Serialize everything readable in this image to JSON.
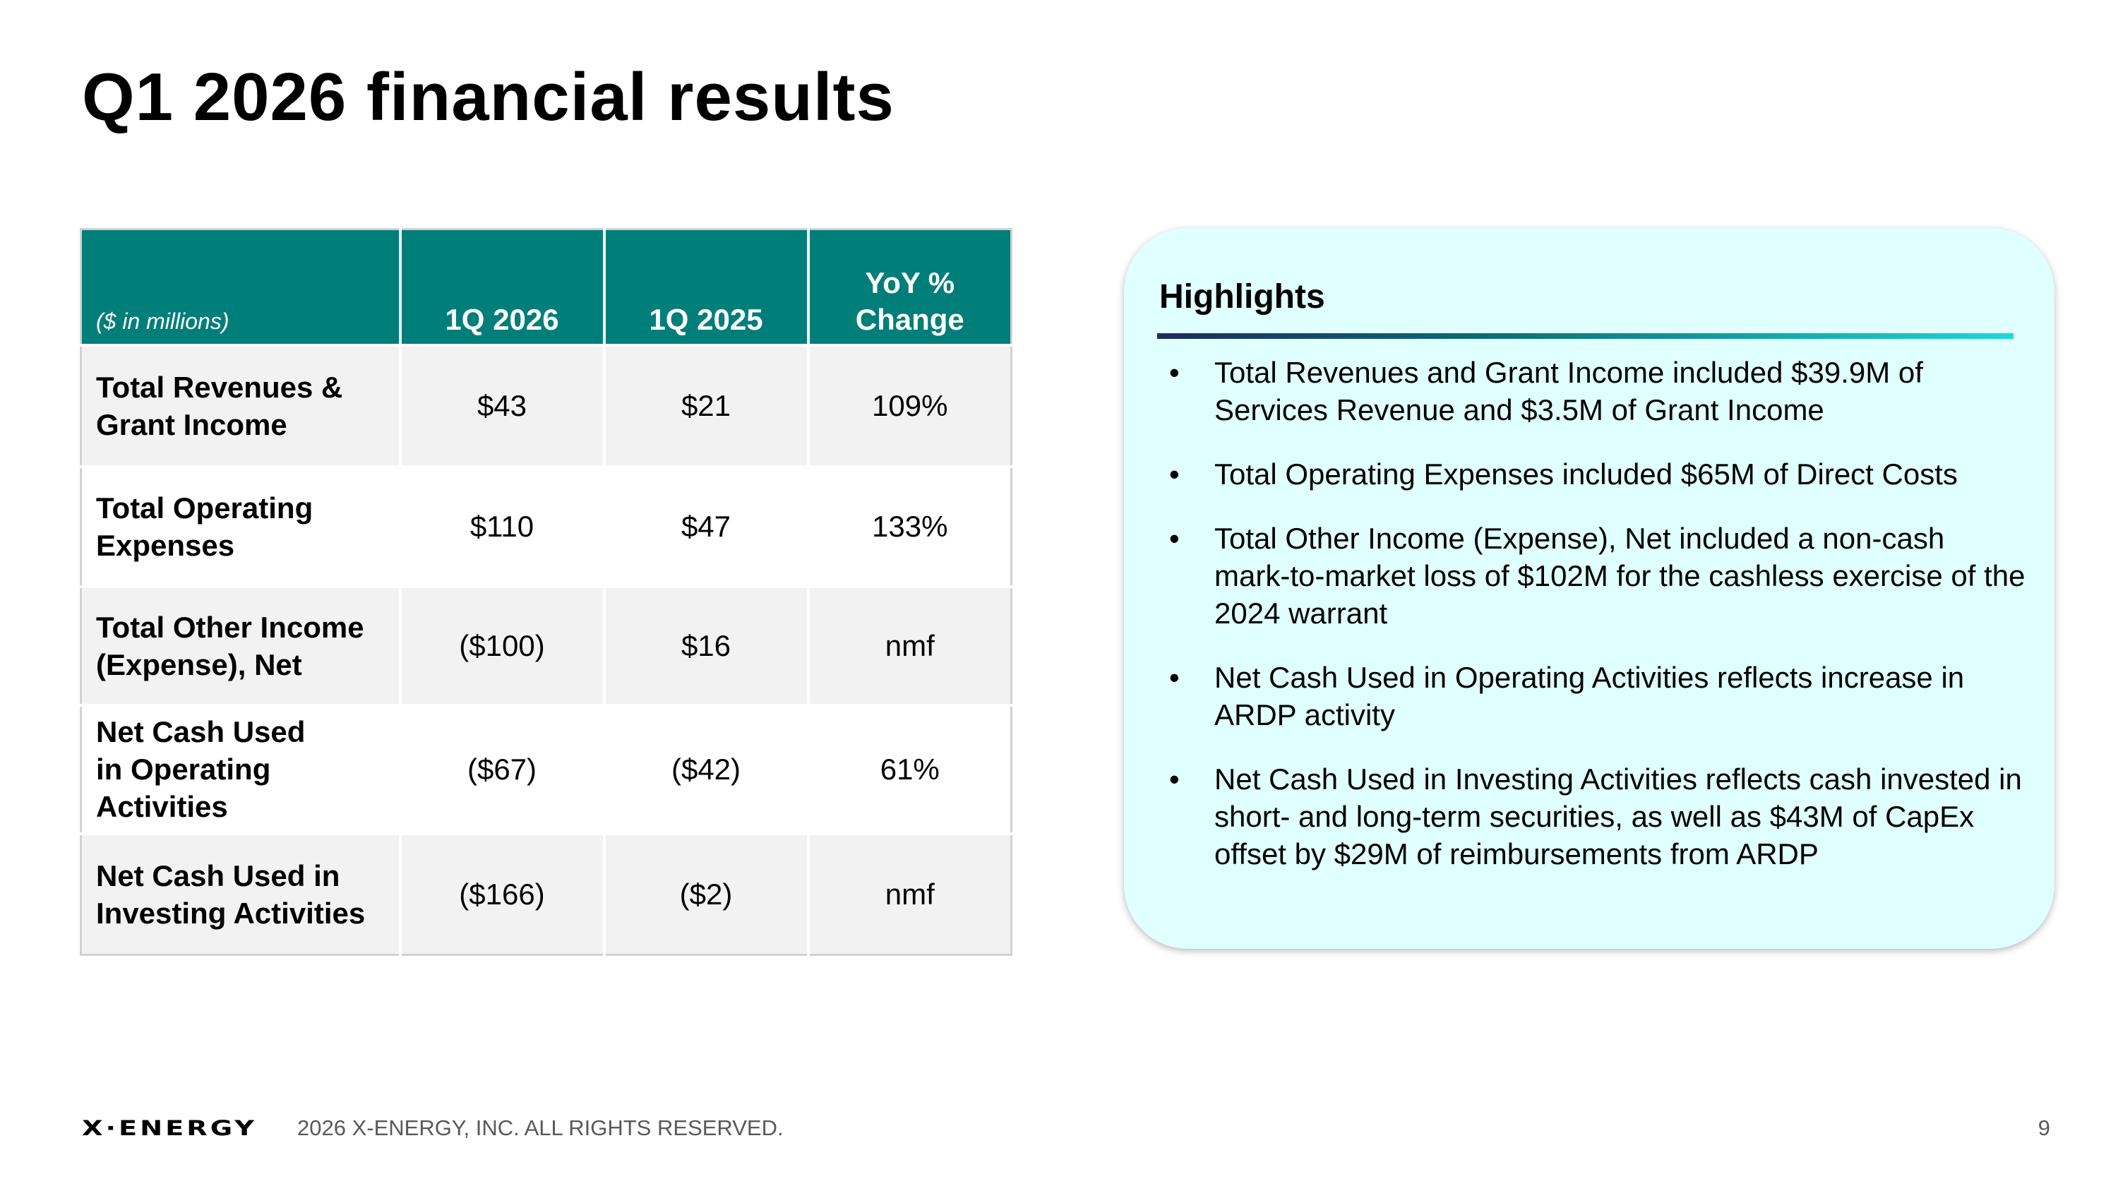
{
  "title": "Q1 2026 financial results",
  "table": {
    "unit_note": "($ in millions)",
    "columns": [
      "1Q 2026",
      "1Q 2025",
      "YoY % Change"
    ],
    "rows": [
      {
        "label": "Total Revenues & Grant Income",
        "q1_2026": "$43",
        "q1_2025": "$21",
        "yoy_change": "109%"
      },
      {
        "label": "Total Operating Expenses",
        "q1_2026": "$110",
        "q1_2025": "$47",
        "yoy_change": "133%"
      },
      {
        "label": "Total Other Income (Expense), Net",
        "q1_2026": "($100)",
        "q1_2025": "$16",
        "yoy_change": "nmf"
      },
      {
        "label": "Net Cash Used in Operating Activities",
        "q1_2026": "($67)",
        "q1_2025": "($42)",
        "yoy_change": "61%"
      },
      {
        "label": "Net Cash Used in Investing Activities",
        "q1_2026": "($166)",
        "q1_2025": "($2)",
        "yoy_change": "nmf"
      }
    ]
  },
  "highlights": {
    "title": "Highlights",
    "bullet_symbol": "•",
    "items": [
      "Total Revenues and Grant Income included $39.9M of Services Revenue and $3.5M of Grant Income",
      "Total Operating Expenses included $65M of Direct Costs",
      "Total Other Income (Expense), Net included a non-cash mark-to-market loss of $102M for the cashless exercise of the 2024 warrant",
      "Net Cash Used in Operating Activities reflects increase in ARDP activity",
      "Net Cash Used in Investing Activities reflects cash invested in short- and long-term securities, as well as $43M of CapEx offset by $29M of reimbursements from ARDP"
    ]
  },
  "footer": {
    "logo_text": "X·ENERGY",
    "copyright": "2026 X-ENERGY, INC. ALL RIGHTS RESERVED.",
    "page_number": "9"
  },
  "colors": {
    "table_header": "#007e7a",
    "row_shade": "#f2f2f2",
    "panel_background": "#e0ffff",
    "rule_gradient_start": "#1d2a5e",
    "rule_gradient_end": "#1fd8d4",
    "footer_text": "#595959"
  }
}
